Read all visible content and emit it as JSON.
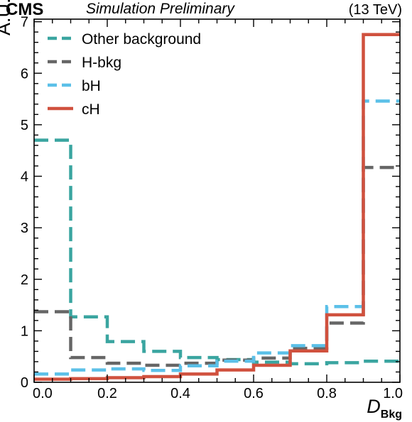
{
  "header": {
    "experiment": "CMS",
    "status": "Simulation Preliminary",
    "energy": "(13 TeV)"
  },
  "chart_data": {
    "type": "histogram",
    "title": "",
    "xlabel": "D",
    "xlabel_sub": "Bkg",
    "ylabel": "A.U.",
    "xlim": [
      0,
      1
    ],
    "ylim": [
      0,
      7.05
    ],
    "xticks": [
      "0.0",
      "0.2",
      "0.4",
      "0.6",
      "0.8",
      "1.0"
    ],
    "xtick_values": [
      0,
      0.2,
      0.4,
      0.6,
      0.8,
      1.0
    ],
    "yticks": [
      "0",
      "1",
      "2",
      "3",
      "4",
      "5",
      "6",
      "7"
    ],
    "ytick_values": [
      0,
      1,
      2,
      3,
      4,
      5,
      6,
      7
    ],
    "bin_edges": [
      0.0,
      0.1,
      0.2,
      0.3,
      0.4,
      0.5,
      0.6,
      0.7,
      0.8,
      0.9,
      1.0
    ],
    "legend_position": "top-left",
    "grid": false,
    "series": [
      {
        "name": "Other background",
        "color": "#3aa5a0",
        "dash": "dashed",
        "values": [
          4.7,
          1.27,
          0.79,
          0.6,
          0.48,
          0.44,
          0.39,
          0.36,
          0.38,
          0.41
        ]
      },
      {
        "name": "H-bkg",
        "color": "#666666",
        "dash": "dashed",
        "values": [
          1.37,
          0.48,
          0.37,
          0.33,
          0.37,
          0.43,
          0.47,
          0.66,
          1.15,
          4.17
        ]
      },
      {
        "name": "bH",
        "color": "#5bc0e8",
        "dash": "dashed",
        "values": [
          0.16,
          0.24,
          0.26,
          0.23,
          0.32,
          0.41,
          0.57,
          0.71,
          1.47,
          5.46
        ]
      },
      {
        "name": "cH",
        "color": "#d0513e",
        "dash": "solid",
        "values": [
          0.06,
          0.07,
          0.09,
          0.11,
          0.16,
          0.24,
          0.33,
          0.61,
          1.31,
          6.75
        ]
      }
    ]
  }
}
